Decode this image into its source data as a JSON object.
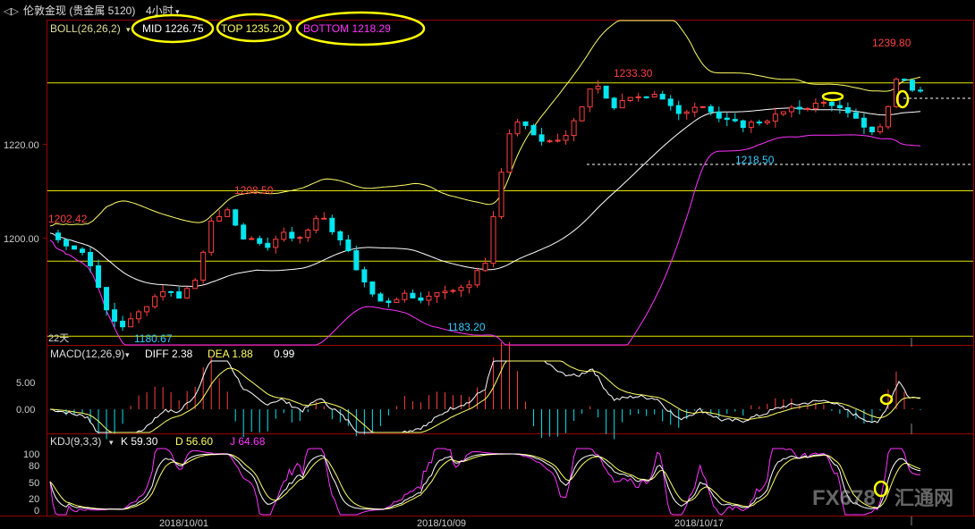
{
  "window": {
    "title": "伦敦金现 (贵金属 5120)",
    "period": "4小时"
  },
  "colors": {
    "up": "#ff4040",
    "down": "#00e5ee",
    "mid": "#ffffff",
    "top": "#ffff66",
    "bottom": "#ff33ff",
    "highlight": "#ffff00",
    "label_red": "#ff4040",
    "label_cyan": "#33ccff"
  },
  "chart_data": {
    "type": "candlestick",
    "y_axis_ticks": [
      "1220.00",
      "1200.00"
    ],
    "x_axis_labels": [
      "2018/10/01",
      "2018/10/09",
      "2018/10/17"
    ],
    "boll": {
      "label": "BOLL(26,26,2)",
      "mid": "MID 1226.75",
      "top": "TOP 1235.20",
      "bottom": "BOTTOM 1218.29"
    },
    "price_annotations": {
      "p1202": "1202.42",
      "p1208": "1208.50",
      "p1233": "1233.30",
      "p1239": "1239.80",
      "p1180": "1180.67",
      "p1183": "1183.20",
      "p1218": "1218.50"
    },
    "period_label": "22天",
    "horizontal_levels": [
      1233,
      1210,
      1195,
      1179
    ],
    "macd": {
      "label": "MACD(12,26,9)",
      "diff": "DIFF 2.38",
      "dea": "DEA 1.88",
      "macd": "0.99",
      "ticks": [
        "5.00",
        "0.00"
      ]
    },
    "kdj": {
      "label": "KDJ(9,3,3)",
      "k": "K 59.30",
      "d": "D 56.60",
      "j": "J 64.68",
      "ticks": [
        "100",
        "80",
        "50",
        "20",
        "0"
      ]
    }
  }
}
